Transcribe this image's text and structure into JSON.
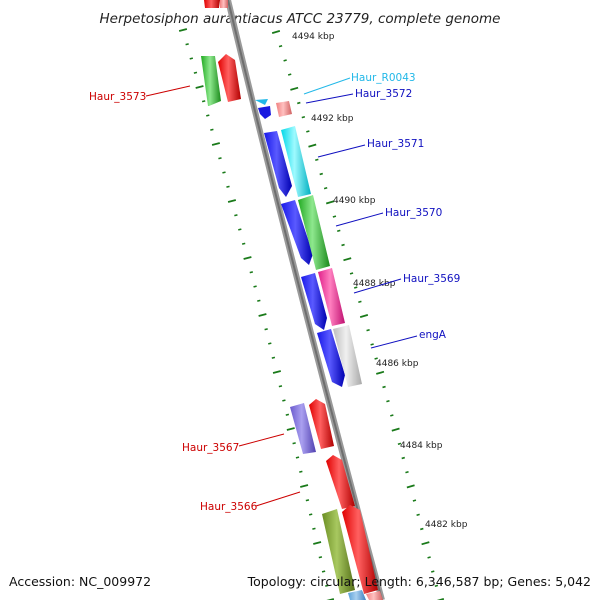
{
  "title": "Herpetosiphon aurantiacus ATCC 23779, complete genome",
  "accession": "Accession: NC_009972",
  "summary": "Topology: circular; Length: 6,346,587 bp; Genes: 5,042",
  "colors": {
    "backbone": "#888888",
    "tick": "#1a7a1a",
    "label_red": "#cc0000",
    "label_blue": "#1010c0",
    "label_cyan": "#22b8e8"
  },
  "ticks": [
    {
      "label": "4494 kbp"
    },
    {
      "label": "4492 kbp"
    },
    {
      "label": "4490 kbp"
    },
    {
      "label": "4488 kbp"
    },
    {
      "label": "4486 kbp"
    },
    {
      "label": "4484 kbp"
    },
    {
      "label": "4482 kbp"
    }
  ],
  "genes": [
    {
      "name": "Haur_3573",
      "color": "#cc0000"
    },
    {
      "name": "Haur_R0043",
      "color": "#22b8e8"
    },
    {
      "name": "Haur_3572",
      "color": "#1010c0"
    },
    {
      "name": "Haur_3571",
      "color": "#1010c0"
    },
    {
      "name": "Haur_3570",
      "color": "#1010c0"
    },
    {
      "name": "Haur_3569",
      "color": "#1010c0"
    },
    {
      "name": "engA",
      "color": "#1010c0"
    },
    {
      "name": "Haur_3567",
      "color": "#cc0000"
    },
    {
      "name": "Haur_3566",
      "color": "#cc0000"
    }
  ]
}
